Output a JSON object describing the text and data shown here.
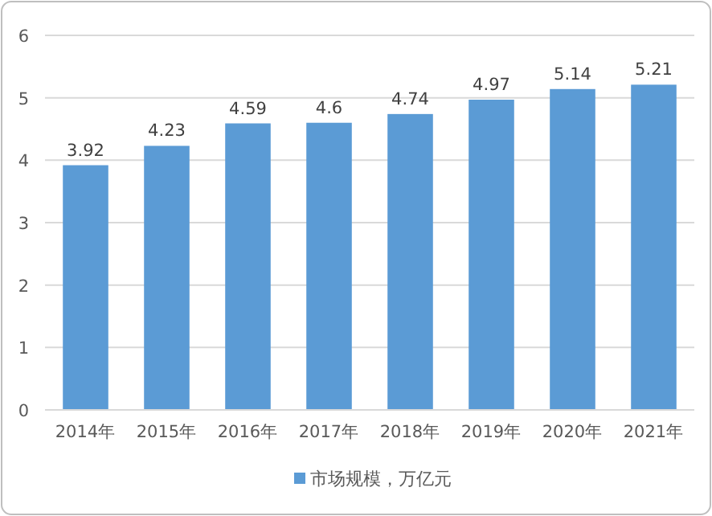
{
  "chart_data": {
    "type": "bar",
    "categories": [
      "2014年",
      "2015年",
      "2016年",
      "2017年",
      "2018年",
      "2019年",
      "2020年",
      "2021年"
    ],
    "series": [
      {
        "name": "市场规模，万亿元",
        "color": "#5b9bd5",
        "values": [
          3.92,
          4.23,
          4.59,
          4.6,
          4.74,
          4.97,
          5.14,
          5.21
        ]
      }
    ],
    "ylim": [
      0,
      6
    ],
    "yticks": [
      0,
      1,
      2,
      3,
      4,
      5,
      6
    ],
    "grid": "y",
    "legend": "bottom",
    "data_labels": true
  }
}
